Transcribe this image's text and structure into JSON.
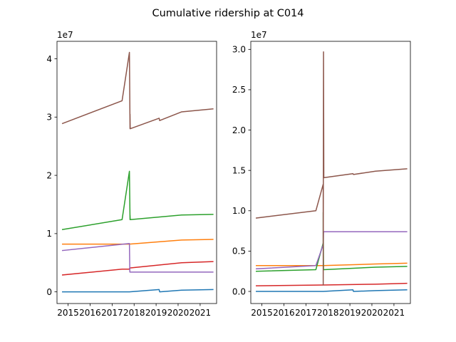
{
  "figure": {
    "title": "Cumulative ridership at C014",
    "series_colors": [
      "#1f77b4",
      "#ff7f0e",
      "#2ca02c",
      "#d62728",
      "#9467bd",
      "#8c564b"
    ]
  },
  "chart_data": [
    {
      "type": "line",
      "title": "",
      "xlabel": "",
      "ylabel": "",
      "offset_label": "1e7",
      "xlim": [
        "2014-07-01",
        "2021-10-01"
      ],
      "ylim": [
        -2000000,
        43000000
      ],
      "xticks": [
        {
          "x": "2015-01-01",
          "label": "2015"
        },
        {
          "x": "2016-01-01",
          "label": "2016"
        },
        {
          "x": "2017-01-01",
          "label": "2017"
        },
        {
          "x": "2018-01-01",
          "label": "2018"
        },
        {
          "x": "2019-01-01",
          "label": "2019"
        },
        {
          "x": "2020-01-01",
          "label": "2020"
        },
        {
          "x": "2021-01-01",
          "label": "2021"
        }
      ],
      "yticks": [
        {
          "y": 0,
          "label": "0"
        },
        {
          "y": 10000000,
          "label": "1"
        },
        {
          "y": 20000000,
          "label": "2"
        },
        {
          "y": 30000000,
          "label": "3"
        },
        {
          "y": 40000000,
          "label": "4"
        }
      ],
      "series": [
        {
          "color": "#1f77b4",
          "points": [
            [
              "2014-10-01",
              0
            ],
            [
              "2017-10-15",
              0
            ],
            [
              "2019-02-20",
              400000
            ],
            [
              "2019-03-01",
              0
            ],
            [
              "2020-03-01",
              300000
            ],
            [
              "2021-08-01",
              400000
            ]
          ]
        },
        {
          "color": "#ff7f0e",
          "points": [
            [
              "2014-10-01",
              8200000
            ],
            [
              "2017-10-15",
              8200000
            ],
            [
              "2020-03-01",
              8900000
            ],
            [
              "2021-08-01",
              9000000
            ]
          ]
        },
        {
          "color": "#2ca02c",
          "points": [
            [
              "2014-10-01",
              10700000
            ],
            [
              "2017-06-15",
              12400000
            ],
            [
              "2017-10-15",
              20700000
            ],
            [
              "2017-10-25",
              12400000
            ],
            [
              "2017-10-25",
              13200000
            ],
            [
              "2017-10-28",
              12400000
            ],
            [
              "2020-03-01",
              13200000
            ],
            [
              "2021-08-01",
              13300000
            ]
          ]
        },
        {
          "color": "#d62728",
          "points": [
            [
              "2014-10-01",
              2900000
            ],
            [
              "2017-06-15",
              3900000
            ],
            [
              "2017-10-15",
              3900000
            ],
            [
              "2017-10-20",
              4100000
            ],
            [
              "2020-03-01",
              5000000
            ],
            [
              "2021-08-01",
              5200000
            ]
          ]
        },
        {
          "color": "#9467bd",
          "points": [
            [
              "2014-10-01",
              7100000
            ],
            [
              "2017-10-15",
              8300000
            ],
            [
              "2017-10-22",
              3400000
            ],
            [
              "2021-08-01",
              3400000
            ]
          ]
        },
        {
          "color": "#8c564b",
          "points": [
            [
              "2014-10-01",
              28900000
            ],
            [
              "2017-06-15",
              32800000
            ],
            [
              "2017-10-15",
              41100000
            ],
            [
              "2017-10-25",
              28000000
            ],
            [
              "2017-10-25",
              30500000
            ],
            [
              "2017-10-28",
              28000000
            ],
            [
              "2019-02-20",
              29800000
            ],
            [
              "2019-03-01",
              29400000
            ],
            [
              "2020-03-01",
              30900000
            ],
            [
              "2021-08-01",
              31400000
            ]
          ]
        }
      ]
    },
    {
      "type": "line",
      "title": "",
      "xlabel": "",
      "ylabel": "",
      "offset_label": "1e7",
      "xlim": [
        "2014-07-01",
        "2021-10-01"
      ],
      "ylim": [
        -1500000,
        31000000
      ],
      "xticks": [
        {
          "x": "2015-01-01",
          "label": "2015"
        },
        {
          "x": "2016-01-01",
          "label": "2016"
        },
        {
          "x": "2017-01-01",
          "label": "2017"
        },
        {
          "x": "2018-01-01",
          "label": "2018"
        },
        {
          "x": "2019-01-01",
          "label": "2019"
        },
        {
          "x": "2020-01-01",
          "label": "2020"
        },
        {
          "x": "2021-01-01",
          "label": "2021"
        }
      ],
      "yticks": [
        {
          "y": 0,
          "label": "0.0"
        },
        {
          "y": 5000000,
          "label": "0.5"
        },
        {
          "y": 10000000,
          "label": "1.0"
        },
        {
          "y": 15000000,
          "label": "1.5"
        },
        {
          "y": 20000000,
          "label": "2.0"
        },
        {
          "y": 25000000,
          "label": "2.5"
        },
        {
          "y": 30000000,
          "label": "3.0"
        }
      ],
      "series": [
        {
          "color": "#1f77b4",
          "points": [
            [
              "2014-10-01",
              0
            ],
            [
              "2017-10-15",
              0
            ],
            [
              "2019-02-20",
              200000
            ],
            [
              "2019-03-01",
              0
            ],
            [
              "2020-03-01",
              100000
            ],
            [
              "2021-08-01",
              200000
            ]
          ]
        },
        {
          "color": "#ff7f0e",
          "points": [
            [
              "2014-10-01",
              3200000
            ],
            [
              "2017-10-15",
              3200000
            ],
            [
              "2020-03-01",
              3400000
            ],
            [
              "2021-08-01",
              3500000
            ]
          ]
        },
        {
          "color": "#2ca02c",
          "points": [
            [
              "2014-10-01",
              2500000
            ],
            [
              "2017-06-15",
              2700000
            ],
            [
              "2017-10-15",
              6000000
            ],
            [
              "2017-10-15",
              9800000
            ],
            [
              "2017-10-20",
              2700000
            ],
            [
              "2020-03-01",
              3000000
            ],
            [
              "2021-08-01",
              3100000
            ]
          ]
        },
        {
          "color": "#d62728",
          "points": [
            [
              "2014-10-01",
              700000
            ],
            [
              "2017-10-15",
              800000
            ],
            [
              "2020-03-01",
              900000
            ],
            [
              "2021-08-01",
              1000000
            ]
          ]
        },
        {
          "color": "#9467bd",
          "points": [
            [
              "2014-10-01",
              2800000
            ],
            [
              "2017-06-15",
              3200000
            ],
            [
              "2017-10-15",
              5800000
            ],
            [
              "2017-10-20",
              7400000
            ],
            [
              "2021-08-01",
              7400000
            ]
          ]
        },
        {
          "color": "#8c564b",
          "points": [
            [
              "2014-10-01",
              9100000
            ],
            [
              "2017-06-15",
              10000000
            ],
            [
              "2017-10-15",
              13300000
            ],
            [
              "2017-10-15",
              800000
            ],
            [
              "2017-10-20",
              29700000
            ],
            [
              "2017-10-25",
              14100000
            ],
            [
              "2019-02-20",
              14600000
            ],
            [
              "2019-03-01",
              14500000
            ],
            [
              "2020-03-01",
              14900000
            ],
            [
              "2021-08-01",
              15200000
            ]
          ]
        }
      ]
    }
  ]
}
